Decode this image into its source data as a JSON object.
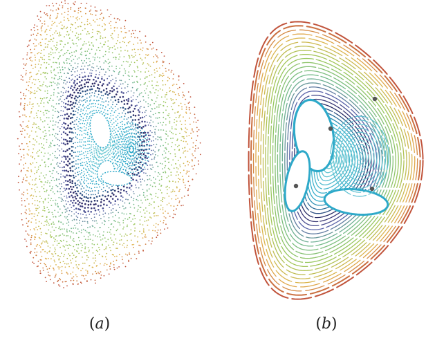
{
  "panels": [
    {
      "label_open": "(",
      "label_letter": "a",
      "label_close": ")",
      "style": "scatter"
    },
    {
      "label_open": "(",
      "label_letter": "b",
      "label_close": ")",
      "style": "contour"
    }
  ],
  "colors": {
    "outer": "#c1543c",
    "mid_outer": "#e3b24c",
    "mid": "#9cc85a",
    "inner_green": "#6fb98f",
    "cyan": "#2ea9c9",
    "blue": "#5a63a8",
    "dark": "#2b2560",
    "core": "#7fd3d6",
    "fixed_point": "#555555"
  },
  "fixed_points_count": 4
}
